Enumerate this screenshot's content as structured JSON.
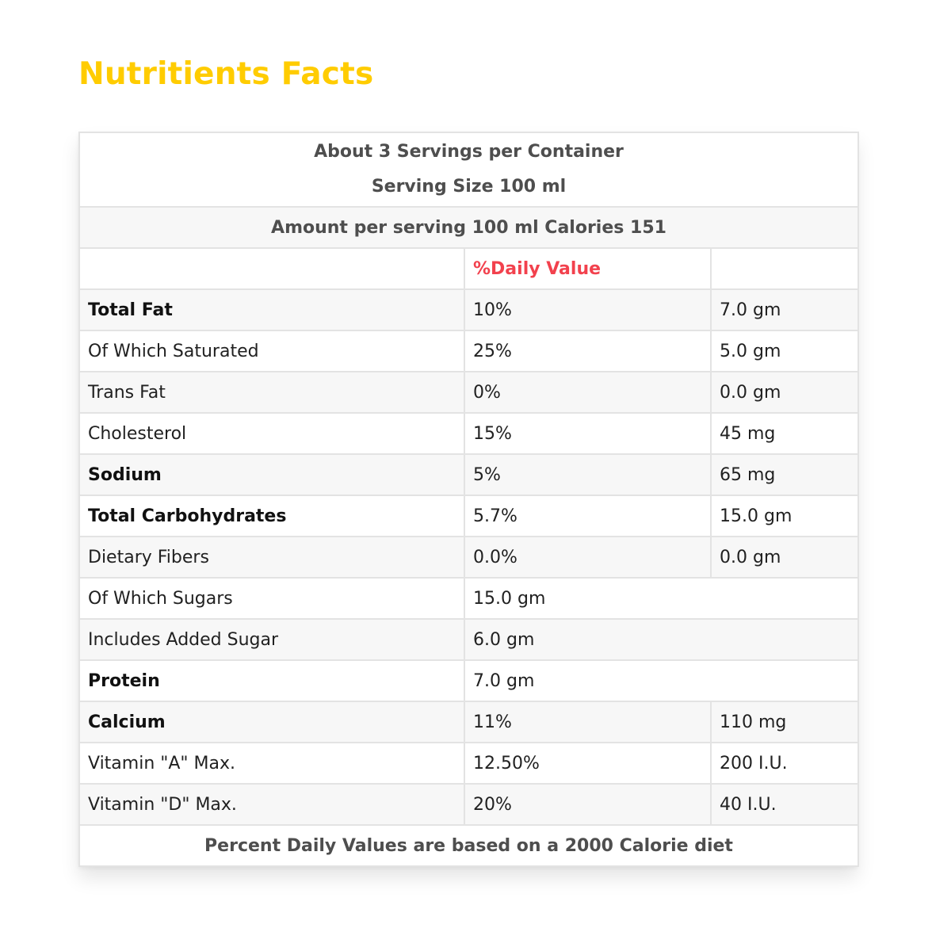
{
  "title": "Nutritients Facts",
  "colors": {
    "title": "#ffcc00",
    "daily_value_header": "#f2414d",
    "row_alt": "#f7f7f7",
    "border": "#e3e3e3"
  },
  "table": {
    "servings_line": "About 3 Servings per Container",
    "serving_size_line": "Serving Size 100 ml",
    "amount_line": "Amount per serving 100 ml Calories 151",
    "daily_value_header": "%Daily Value",
    "rows": [
      {
        "name": "Total Fat",
        "bold": true,
        "dv": "10%",
        "amount": "7.0 gm"
      },
      {
        "name": "Of Which Saturated",
        "bold": false,
        "dv": "25%",
        "amount": "5.0 gm"
      },
      {
        "name": "Trans Fat",
        "bold": false,
        "dv": "0%",
        "amount": "0.0 gm"
      },
      {
        "name": "Cholesterol",
        "bold": false,
        "dv": "15%",
        "amount": "45 mg"
      },
      {
        "name": "Sodium",
        "bold": true,
        "dv": "5%",
        "amount": "65 mg"
      },
      {
        "name": "Total Carbohydrates",
        "bold": true,
        "dv": "5.7%",
        "amount": "15.0 gm"
      },
      {
        "name": "Dietary Fibers",
        "bold": false,
        "dv": "0.0%",
        "amount": "0.0 gm"
      },
      {
        "name": "Of Which Sugars",
        "bold": false,
        "dv": "15.0 gm",
        "amount": null
      },
      {
        "name": "Includes Added Sugar",
        "bold": false,
        "dv": "6.0 gm",
        "amount": null
      },
      {
        "name": "Protein",
        "bold": true,
        "dv": "7.0 gm",
        "amount": null
      },
      {
        "name": "Calcium",
        "bold": true,
        "dv": "11%",
        "amount": "110 mg"
      },
      {
        "name": "Vitamin \"A\" Max.",
        "bold": false,
        "dv": "12.50%",
        "amount": "200 I.U."
      },
      {
        "name": "Vitamin \"D\" Max.",
        "bold": false,
        "dv": "20%",
        "amount": "40 I.U."
      }
    ],
    "footer": "Percent Daily Values are based on a 2000 Calorie diet"
  }
}
